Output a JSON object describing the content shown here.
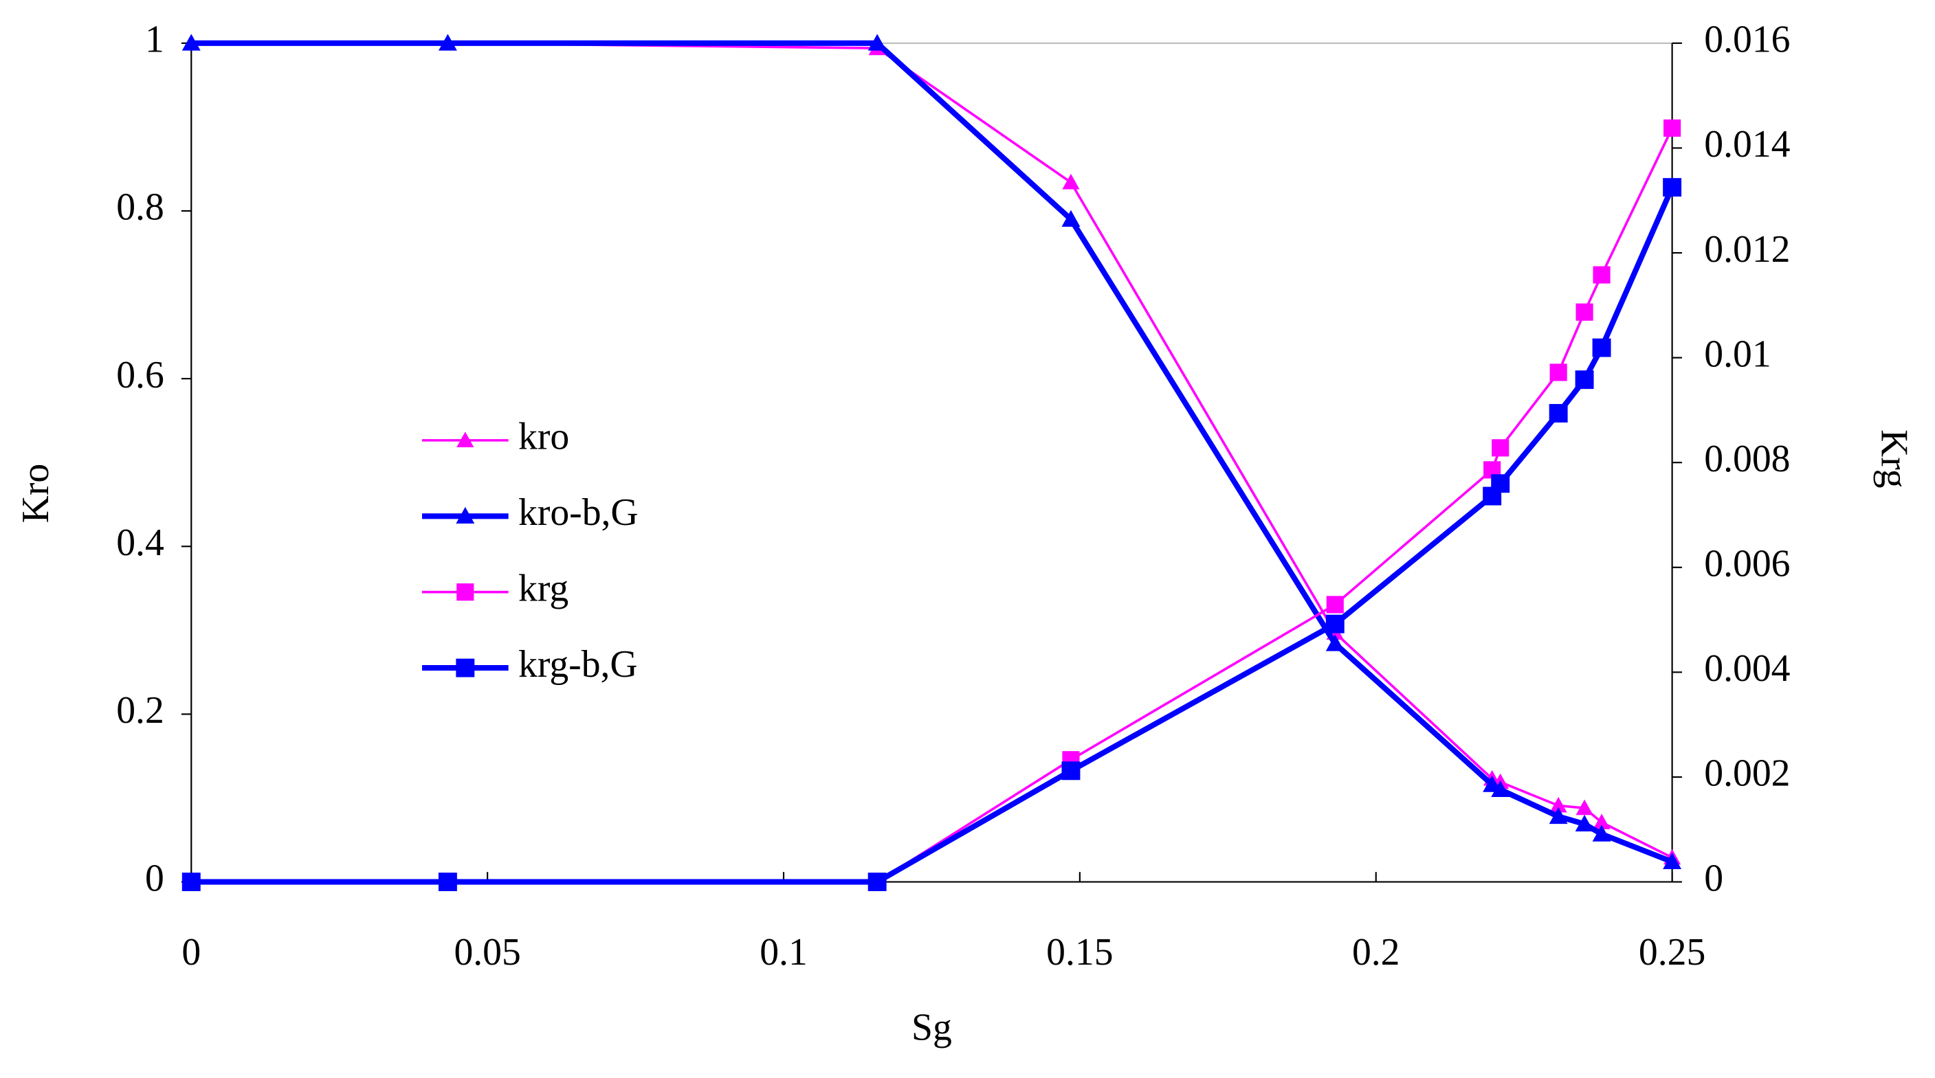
{
  "chart_data": {
    "type": "line",
    "xlabel": "Sg",
    "ylabel": "Kro",
    "y2label": "Krg",
    "x": [
      0,
      0.0433,
      0.1158,
      0.1485,
      0.1931,
      0.2196,
      0.221,
      0.2308,
      0.2352,
      0.2381,
      0.25
    ],
    "series": [
      {
        "name": "kro",
        "color": "#ff00ff",
        "marker": "triangle",
        "line_width": 2,
        "axis": "y",
        "values": [
          1,
          1,
          0.994,
          0.834,
          0.297,
          0.123,
          0.119,
          0.091,
          0.088,
          0.071,
          0.029
        ]
      },
      {
        "name": "kro-b,G",
        "color": "#0000ff",
        "marker": "triangle",
        "line_width": 4.5,
        "axis": "y",
        "values": [
          1,
          1,
          1,
          0.79,
          0.284,
          0.116,
          0.11,
          0.078,
          0.069,
          0.057,
          0.024
        ]
      },
      {
        "name": "krg",
        "color": "#ff00ff",
        "marker": "square",
        "line_width": 2,
        "axis": "y2",
        "values": [
          0,
          0,
          0,
          0.00233,
          0.00529,
          0.00786,
          0.00828,
          0.00972,
          0.01087,
          0.01158,
          0.01438
        ]
      },
      {
        "name": "krg-b,G",
        "color": "#0000ff",
        "marker": "square",
        "line_width": 4.5,
        "axis": "y2",
        "values": [
          0,
          0,
          0,
          0.00212,
          0.00492,
          0.00736,
          0.0076,
          0.00894,
          0.00958,
          0.01019,
          0.01325
        ]
      }
    ],
    "xlim": [
      0,
      0.25
    ],
    "xticks": [
      0,
      0.05,
      0.1,
      0.15,
      0.2,
      0.25
    ],
    "ylim": [
      0,
      1
    ],
    "yticks": [
      0,
      0.2,
      0.4,
      0.6,
      0.8,
      1
    ],
    "y2lim": [
      0,
      0.016
    ],
    "y2ticks": [
      0,
      0.002,
      0.004,
      0.006,
      0.008,
      0.01,
      0.012,
      0.014,
      0.016
    ],
    "grid": false,
    "legend": "center left"
  }
}
